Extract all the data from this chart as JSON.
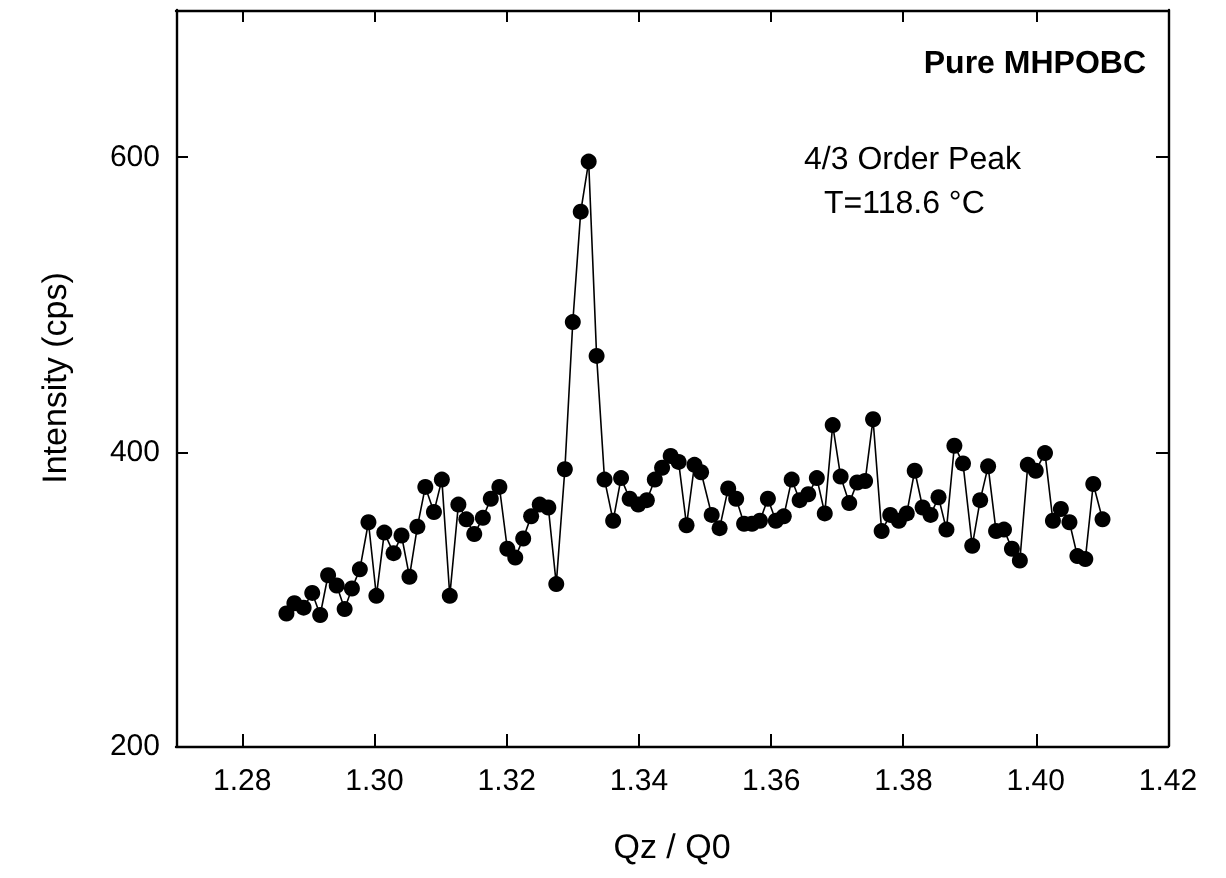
{
  "chart_data": {
    "type": "line",
    "xlabel": "Qz / Q0",
    "ylabel": "Intensity (cps)",
    "annotations": [
      "Pure MHPOBC",
      "4/3 Order Peak",
      "T=118.6 °C"
    ],
    "xlim": [
      1.27,
      1.42
    ],
    "xticks": [
      1.28,
      {
        "value": 1.3,
        "label": "1.30"
      },
      1.32,
      1.34,
      1.36,
      1.38,
      {
        "value": 1.4,
        "label": "1.40"
      },
      1.42
    ],
    "ylim": [
      200,
      700
    ],
    "yticks": [
      200,
      400,
      600
    ],
    "marker": "circle",
    "line_style": "solid",
    "series": [
      {
        "color": "#000000",
        "x": [
          1.2867,
          1.2879,
          1.2893,
          1.2906,
          1.2918,
          1.293,
          1.2943,
          1.2955,
          1.2966,
          1.2978,
          1.2991,
          1.3003,
          1.3015,
          1.3029,
          1.3041,
          1.3053,
          1.3065,
          1.3077,
          1.309,
          1.3102,
          1.3114,
          1.3127,
          1.3139,
          1.3151,
          1.3164,
          1.3176,
          1.3189,
          1.3201,
          1.3213,
          1.3225,
          1.3237,
          1.325,
          1.3263,
          1.3275,
          1.3288,
          1.33,
          1.3312,
          1.3324,
          1.3336,
          1.3348,
          1.3361,
          1.3373,
          1.3386,
          1.3399,
          1.3412,
          1.3424,
          1.3435,
          1.3448,
          1.346,
          1.3472,
          1.3484,
          1.3494,
          1.351,
          1.3522,
          1.3535,
          1.3547,
          1.3559,
          1.3571,
          1.3583,
          1.3595,
          1.3607,
          1.3619,
          1.3631,
          1.3643,
          1.3656,
          1.3669,
          1.3681,
          1.3693,
          1.3705,
          1.3718,
          1.373,
          1.3742,
          1.3754,
          1.3767,
          1.378,
          1.3793,
          1.3805,
          1.3817,
          1.3829,
          1.3841,
          1.3853,
          1.3865,
          1.3877,
          1.389,
          1.3904,
          1.3916,
          1.3928,
          1.394,
          1.3952,
          1.3964,
          1.3976,
          1.3988,
          1.4,
          1.4014,
          1.4026,
          1.4038,
          1.4051,
          1.4063,
          1.4075,
          1.4087,
          1.4101
        ],
        "values": [
          290,
          297,
          294,
          304,
          289,
          316,
          309,
          293,
          307,
          320,
          352,
          302,
          345,
          331,
          343,
          315,
          349,
          376,
          359,
          381,
          302,
          364,
          354,
          344,
          355,
          368,
          376,
          334,
          328,
          341,
          356,
          364,
          362,
          310,
          388,
          488,
          563,
          597,
          465,
          381,
          353,
          382,
          368,
          364,
          367,
          381,
          389,
          397,
          393,
          350,
          391,
          386,
          357,
          348,
          375,
          368,
          351,
          351,
          353,
          368,
          353,
          356,
          381,
          367,
          371,
          382,
          358,
          418,
          383,
          365,
          379,
          380,
          422,
          346,
          357,
          353,
          358,
          387,
          362,
          357,
          369,
          347,
          404,
          392,
          336,
          367,
          390,
          346,
          347,
          334,
          326,
          391,
          387,
          399,
          353,
          361,
          352,
          329,
          327,
          378,
          354
        ]
      }
    ]
  }
}
